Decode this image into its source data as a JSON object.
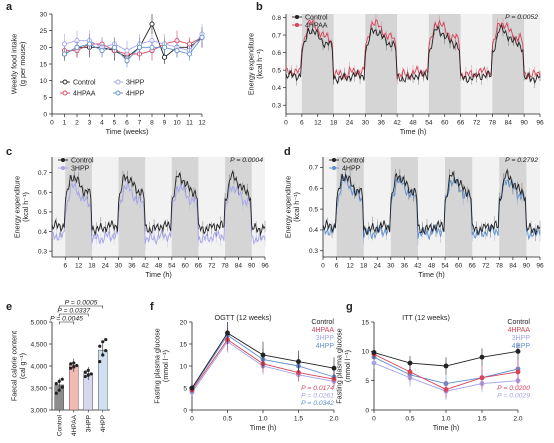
{
  "colors": {
    "control": "#222222",
    "hpaa4": "#d9445a",
    "hpp3": "#a3a3e8",
    "hpp4": "#5f8fd0",
    "dark_band": "#d5d5d5",
    "light_band": "#f2f2f2",
    "bar_control": "#8c8c8c",
    "bar_hpaa": "#f3b9b3",
    "bar_3hpp": "#d7d7f0",
    "bar_4hpp": "#cfe0f2"
  },
  "chart_data": [
    {
      "id": "a",
      "type": "line",
      "letter": "a",
      "title": "",
      "xlabel": "Time (weeks)",
      "ylabel_lines": [
        "Weekly food intake",
        "(g per mouse)"
      ],
      "xlim": [
        0,
        12
      ],
      "ylim": [
        0,
        30
      ],
      "xticks": [
        0,
        1,
        2,
        3,
        4,
        5,
        6,
        7,
        8,
        9,
        10,
        11,
        12
      ],
      "yticks": [
        0,
        5,
        10,
        15,
        20,
        25,
        30
      ],
      "legend": [
        {
          "label": "Control",
          "key": "control",
          "hollow": true
        },
        {
          "label": "3HPP",
          "key": "hpp3",
          "hollow": true
        },
        {
          "label": "4HPAA",
          "key": "hpaa4",
          "hollow": true
        },
        {
          "label": "4HPP",
          "key": "hpp4",
          "hollow": true
        }
      ],
      "x": [
        1,
        2,
        3,
        4,
        5,
        6,
        7,
        8,
        9,
        10,
        11,
        12
      ],
      "series": [
        {
          "name": "Control",
          "key": "control",
          "values": [
            18,
            20,
            20,
            20,
            19,
            17,
            20,
            27,
            17,
            20,
            20,
            23
          ],
          "err": [
            2,
            3,
            3,
            2,
            3,
            2,
            2,
            3,
            2,
            3,
            2,
            3
          ]
        },
        {
          "name": "4HPAA",
          "key": "hpaa4",
          "values": [
            19,
            19,
            21,
            21,
            19,
            18,
            18,
            19,
            21,
            22,
            21,
            23
          ],
          "err": [
            2,
            2,
            3,
            2,
            2,
            2,
            2,
            3,
            2,
            3,
            2,
            3
          ]
        },
        {
          "name": "3HPP",
          "key": "hpp3",
          "values": [
            21,
            22,
            22,
            20,
            21,
            19,
            21,
            22,
            21,
            20,
            19,
            24
          ],
          "err": [
            3,
            3,
            3,
            3,
            2,
            3,
            3,
            2,
            3,
            3,
            2,
            3
          ]
        },
        {
          "name": "4HPP",
          "key": "hpp4",
          "values": [
            18,
            20,
            21,
            19,
            20,
            16,
            20,
            20,
            20,
            19,
            18,
            23
          ],
          "err": [
            2,
            2,
            2,
            2,
            3,
            2,
            3,
            2,
            2,
            2,
            2,
            3
          ]
        }
      ]
    },
    {
      "id": "b",
      "type": "line",
      "letter": "b",
      "title": "",
      "xlabel": "Time (h)",
      "ylabel_lines": [
        "Energy expenditure",
        "(kcal h⁻¹)"
      ],
      "xlim": [
        0,
        96
      ],
      "ylim": [
        0.25,
        0.82
      ],
      "xticks": [
        0,
        6,
        12,
        18,
        24,
        30,
        36,
        42,
        48,
        54,
        60,
        66,
        72,
        78,
        84,
        90,
        96
      ],
      "yticks": [
        0.3,
        0.4,
        0.5,
        0.6,
        0.7,
        0.8
      ],
      "ytick_labels": [
        "0.3",
        "0.4",
        "0.5",
        "0.6",
        "0.7",
        "0.8"
      ],
      "dark_periods": [
        [
          6,
          18
        ],
        [
          30,
          42
        ],
        [
          54,
          66
        ],
        [
          78,
          90
        ]
      ],
      "p_value": "P = 0.0052",
      "legend": [
        {
          "label": "Control",
          "key": "control"
        },
        {
          "label": "4HPAA",
          "key": "hpaa4"
        }
      ],
      "series": [
        {
          "name": "Control",
          "key": "control",
          "base": 0.44,
          "peak": 0.73
        },
        {
          "name": "4HPAA",
          "key": "hpaa4",
          "base": 0.46,
          "peak": 0.77
        }
      ]
    },
    {
      "id": "c",
      "type": "line",
      "letter": "c",
      "title": "",
      "xlabel": "Time (h)",
      "ylabel_lines": [
        "Energy expenditure",
        "(kcal h⁻¹)"
      ],
      "xlim": [
        0,
        96
      ],
      "ylim": [
        0.27,
        0.78
      ],
      "xticks": [
        6,
        12,
        18,
        24,
        30,
        36,
        42,
        48,
        54,
        60,
        66,
        72,
        78,
        84,
        90,
        96
      ],
      "yticks": [
        0.3,
        0.4,
        0.5,
        0.6,
        0.7
      ],
      "ytick_labels": [
        "0.3",
        "0.4",
        "0.5",
        "0.6",
        "0.7"
      ],
      "dark_periods": [
        [
          6,
          18
        ],
        [
          30,
          42
        ],
        [
          54,
          66
        ],
        [
          78,
          90
        ]
      ],
      "p_value": "P = 0.0004",
      "legend": [
        {
          "label": "Control",
          "key": "control"
        },
        {
          "label": "3HPP",
          "key": "hpp3"
        }
      ],
      "series": [
        {
          "name": "Control",
          "key": "control",
          "base": 0.4,
          "peak": 0.68
        },
        {
          "name": "3HPP",
          "key": "hpp3",
          "base": 0.35,
          "peak": 0.63
        }
      ]
    },
    {
      "id": "d",
      "type": "line",
      "letter": "d",
      "title": "",
      "xlabel": "Time (h)",
      "ylabel_lines": [
        "Energy expenditure",
        "(kcal h⁻¹)"
      ],
      "xlim": [
        0,
        96
      ],
      "ylim": [
        0.27,
        0.75
      ],
      "xticks": [
        0,
        6,
        12,
        18,
        24,
        30,
        36,
        42,
        48,
        54,
        60,
        66,
        72,
        78,
        84,
        90,
        96
      ],
      "yticks": [
        0.3,
        0.4,
        0.5,
        0.6,
        0.7
      ],
      "ytick_labels": [
        "0.3",
        "0.4",
        "0.5",
        "0.6",
        "0.7"
      ],
      "dark_periods": [
        [
          6,
          18
        ],
        [
          30,
          42
        ],
        [
          54,
          66
        ],
        [
          78,
          90
        ]
      ],
      "p_value": "P = 0.2792",
      "legend": [
        {
          "label": "Control",
          "key": "control"
        },
        {
          "label": "4HPP",
          "key": "hpp4"
        }
      ],
      "series": [
        {
          "name": "Control",
          "key": "control",
          "base": 0.39,
          "peak": 0.66
        },
        {
          "name": "4HPP",
          "key": "hpp4",
          "base": 0.37,
          "peak": 0.64
        }
      ]
    },
    {
      "id": "e",
      "type": "bar",
      "letter": "e",
      "title": "",
      "xlabel": "",
      "ylabel_lines": [
        "Faecal calorie content",
        "(cal g⁻¹)"
      ],
      "categories": [
        "Control",
        "4HPAA",
        "3HPP",
        "4HPP"
      ],
      "keys": [
        "bar_control",
        "bar_hpaa",
        "bar_3hpp",
        "bar_4hpp"
      ],
      "values": [
        3570,
        4020,
        3830,
        4360
      ],
      "points": [
        [
          3380,
          3450,
          3520,
          3600,
          3650,
          3700
        ],
        [
          3950,
          3980,
          4010,
          4050,
          4070
        ],
        [
          3760,
          3790,
          3820,
          3860,
          3900
        ],
        [
          4100,
          4250,
          4350,
          4450,
          4550,
          4600
        ]
      ],
      "ylim": [
        3000,
        5000
      ],
      "yticks": [
        3000,
        3500,
        4000,
        4500,
        5000
      ],
      "ytick_labels": [
        "3,000",
        "3,500",
        "4,000",
        "4,500",
        "5,000"
      ],
      "comparisons": [
        {
          "from": 0,
          "to": 3,
          "label": "P = 0.0005"
        },
        {
          "from": 0,
          "to": 2,
          "label": "P = 0.0337"
        },
        {
          "from": 0,
          "to": 1,
          "label": "P = 0.0045"
        }
      ]
    },
    {
      "id": "f",
      "type": "line",
      "letter": "f",
      "title": "OGTT (12 weeks)",
      "xlabel": "Time (h)",
      "ylabel_lines": [
        "Fasting plasma glucose",
        "(mmol l⁻¹)"
      ],
      "xlim": [
        0,
        2.0
      ],
      "ylim": [
        0,
        20
      ],
      "xticks": [
        0,
        0.5,
        1.0,
        1.5,
        2.0
      ],
      "xtick_labels": [
        "0",
        "0.5",
        "1.0",
        "1.5",
        "2.0"
      ],
      "yticks": [
        0,
        5,
        10,
        15,
        20
      ],
      "x": [
        0,
        0.5,
        1.0,
        1.5,
        2.0
      ],
      "legend": [
        {
          "label": "Control",
          "key": "control"
        },
        {
          "label": "4HPAA",
          "key": "hpaa4"
        },
        {
          "label": "3HPP",
          "key": "hpp3"
        },
        {
          "label": "4HPP",
          "key": "hpp4"
        }
      ],
      "p_values": [
        {
          "label": "P = 0.0174",
          "key": "hpaa4"
        },
        {
          "label": "P = 0.0261",
          "key": "hpp3"
        },
        {
          "label": "P = 0.0342",
          "key": "hpp4"
        }
      ],
      "series": [
        {
          "name": "Control",
          "key": "control",
          "values": [
            5.0,
            17.5,
            12.5,
            11.0,
            9.5
          ],
          "err": [
            1.0,
            2.5,
            3.0,
            2.5,
            2.5
          ]
        },
        {
          "name": "4HPAA",
          "key": "hpaa4",
          "values": [
            4.5,
            16.0,
            10.5,
            8.5,
            7.0
          ],
          "err": [
            0.8,
            2.5,
            2.0,
            2.0,
            1.5
          ]
        },
        {
          "name": "3HPP",
          "key": "hpp3",
          "values": [
            4.0,
            15.5,
            10.0,
            8.0,
            6.5
          ],
          "err": [
            0.8,
            2.5,
            2.0,
            1.5,
            1.5
          ]
        },
        {
          "name": "4HPP",
          "key": "hpp4",
          "values": [
            4.8,
            17.0,
            11.5,
            10.0,
            7.5
          ],
          "err": [
            1.0,
            3.0,
            2.5,
            2.5,
            2.0
          ]
        }
      ]
    },
    {
      "id": "g",
      "type": "line",
      "letter": "g",
      "title": "ITT (12 weeks)",
      "xlabel": "Time (h)",
      "ylabel_lines": [
        "Fasting plasma glucose",
        "(mmol l⁻¹)"
      ],
      "xlim": [
        0,
        2.0
      ],
      "ylim": [
        0,
        15
      ],
      "xticks": [
        0,
        0.5,
        1.0,
        1.5,
        2.0
      ],
      "xtick_labels": [
        "0",
        "0.5",
        "1.0",
        "1.5",
        "2.0"
      ],
      "yticks": [
        0,
        5,
        10,
        15
      ],
      "x": [
        0,
        0.5,
        1.0,
        1.5,
        2.0
      ],
      "legend": [
        {
          "label": "Control",
          "key": "control"
        },
        {
          "label": "4HPAA",
          "key": "hpaa4"
        },
        {
          "label": "3HPP",
          "key": "hpp3"
        },
        {
          "label": "4HPP",
          "key": "hpp4"
        }
      ],
      "p_values": [
        {
          "label": "P = 0.0200",
          "key": "hpaa4"
        },
        {
          "label": "P = 0.0029",
          "key": "hpp3"
        }
      ],
      "series": [
        {
          "name": "Control",
          "key": "control",
          "values": [
            9.8,
            8.0,
            7.5,
            9.0,
            10.0
          ],
          "err": [
            1.0,
            1.2,
            1.5,
            1.5,
            1.5
          ]
        },
        {
          "name": "4HPAA",
          "key": "hpaa4",
          "values": [
            9.5,
            6.5,
            3.5,
            5.5,
            6.5
          ],
          "err": [
            1.0,
            1.5,
            1.5,
            2.0,
            2.0
          ]
        },
        {
          "name": "3HPP",
          "key": "hpp3",
          "values": [
            8.0,
            5.5,
            3.2,
            4.5,
            5.0
          ],
          "err": [
            1.0,
            1.5,
            1.5,
            1.5,
            1.5
          ]
        },
        {
          "name": "4HPP",
          "key": "hpp4",
          "values": [
            9.0,
            6.0,
            4.5,
            5.5,
            7.0
          ],
          "err": [
            1.0,
            1.5,
            1.5,
            1.5,
            1.5
          ]
        }
      ]
    }
  ]
}
